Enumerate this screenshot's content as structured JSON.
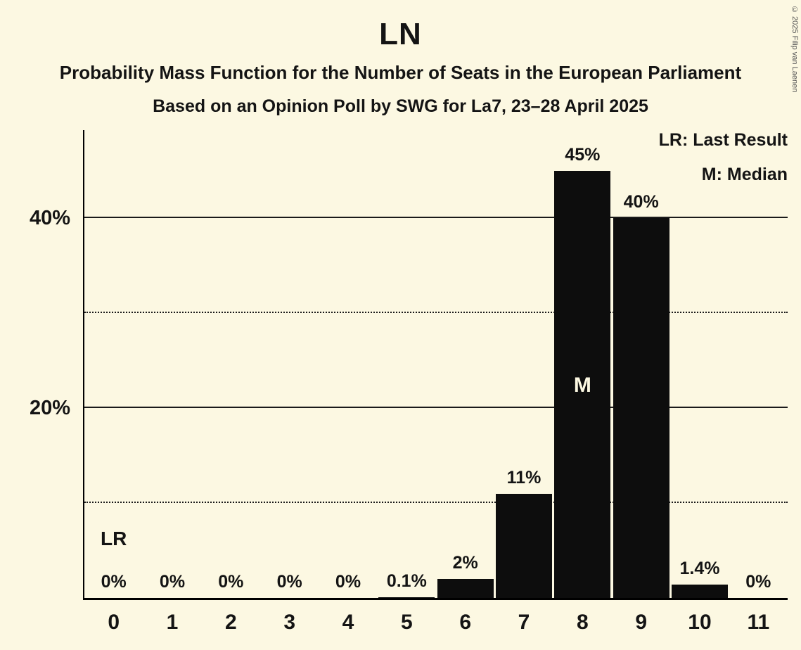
{
  "title": "LN",
  "subtitle": "Probability Mass Function for the Number of Seats in the European Parliament",
  "poll_info": "Based on an Opinion Poll by SWG for La7, 23–28 April 2025",
  "copyright": "© 2025 Filip van Laenen",
  "legend": {
    "lr": "LR: Last Result",
    "m": "M: Median"
  },
  "colors": {
    "background": "#FCF8E2",
    "bar": "#0D0D0D",
    "text": "#141414",
    "gridline": "#1a1a1a"
  },
  "chart_data": {
    "type": "bar",
    "title": "LN",
    "categories": [
      "0",
      "1",
      "2",
      "3",
      "4",
      "5",
      "6",
      "7",
      "8",
      "9",
      "10",
      "11"
    ],
    "values": [
      0,
      0,
      0,
      0,
      0,
      0.1,
      2,
      11,
      45,
      40,
      1.4,
      0
    ],
    "bar_labels": [
      "0%",
      "0%",
      "0%",
      "0%",
      "0%",
      "0.1%",
      "2%",
      "11%",
      "45%",
      "40%",
      "1.4%",
      "0%"
    ],
    "yticks": [
      {
        "value": 20,
        "label": "20%"
      },
      {
        "value": 40,
        "label": "40%"
      }
    ],
    "solid_gridlines": [
      20,
      40
    ],
    "dotted_gridlines": [
      10,
      30
    ],
    "ylim": [
      0,
      49.3
    ],
    "grid": "horizontal",
    "legend_position": "top-right",
    "annotations": {
      "lr_index": 0,
      "lr_text": "LR",
      "median_index": 8,
      "median_text": "M"
    }
  }
}
